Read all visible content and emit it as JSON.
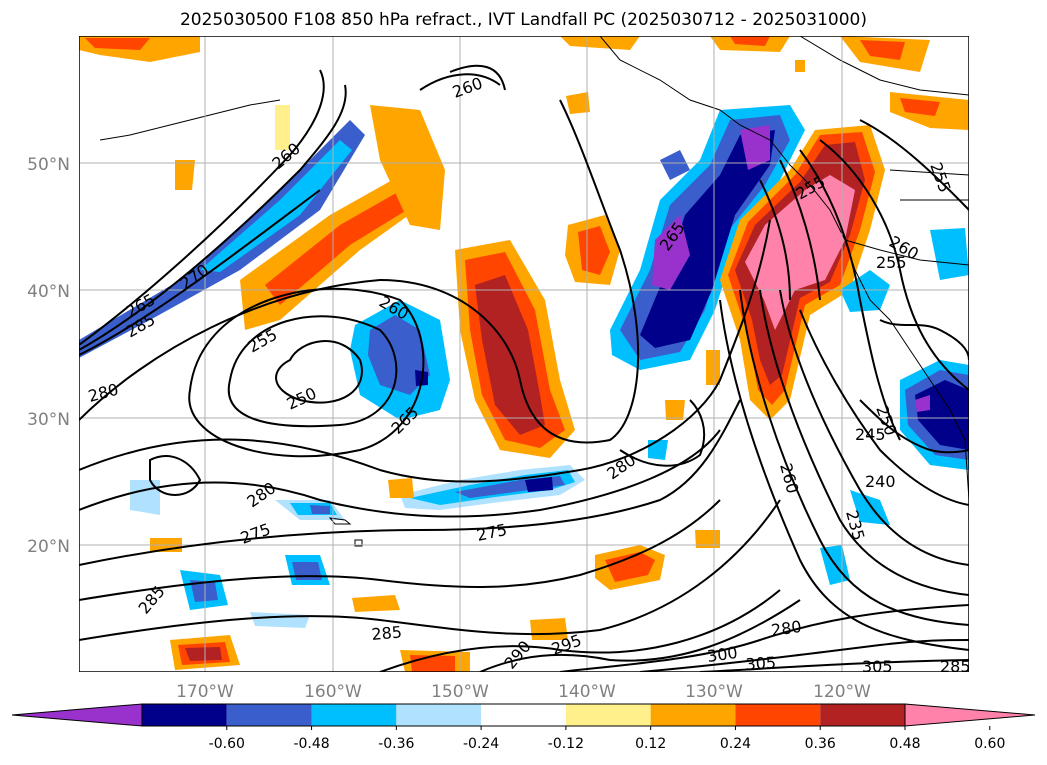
{
  "title": "2025030500 F108 850 hPa refract., IVT Landfall PC (2025030712 - 2025031000)",
  "lat_labels": [
    "50°N",
    "40°N",
    "30°N",
    "20°N"
  ],
  "lon_labels": [
    "170°W",
    "160°W",
    "150°W",
    "140°W",
    "130°W",
    "120°W"
  ],
  "contour_labels": [
    "260",
    "260",
    "270",
    "265",
    "285",
    "255",
    "250",
    "260",
    "265",
    "280",
    "280",
    "280",
    "275",
    "275",
    "285",
    "285",
    "290",
    "295",
    "300",
    "305",
    "280",
    "260",
    "235",
    "240",
    "245",
    "250",
    "255",
    "260",
    "255",
    "265",
    "255",
    "305",
    "285"
  ],
  "colorbar": {
    "colors": [
      "#9932cc",
      "#00008b",
      "#3a5fcd",
      "#00bfff",
      "#b0e2ff",
      "#ffffff",
      "#fff08c",
      "#ffa500",
      "#ff4500",
      "#b22222",
      "#ff82ab"
    ],
    "ticks": [
      "-0.60",
      "-0.48",
      "-0.36",
      "-0.24",
      "-0.12",
      "0.12",
      "0.24",
      "0.36",
      "0.48",
      "0.60"
    ]
  }
}
